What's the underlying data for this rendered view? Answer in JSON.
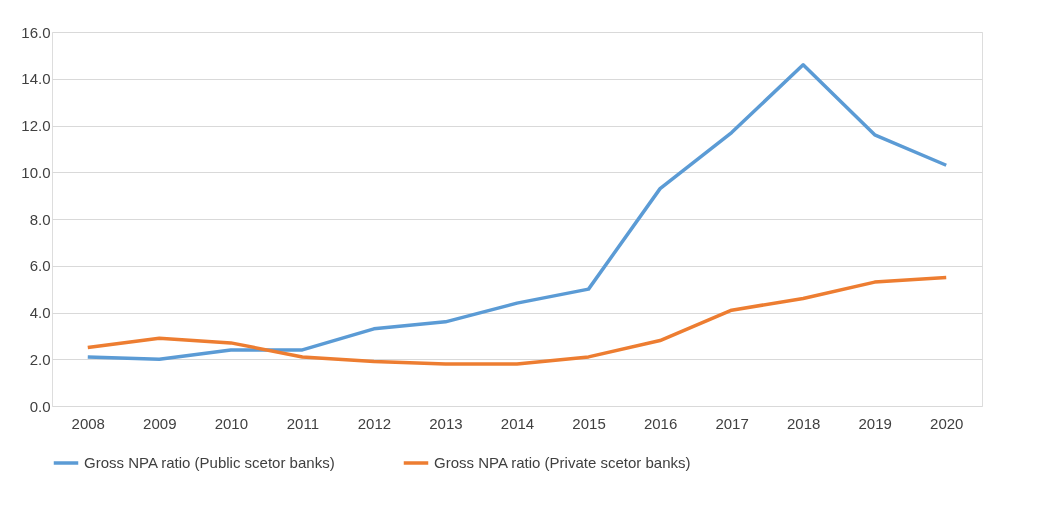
{
  "chart_data": {
    "type": "line",
    "categories": [
      "2008",
      "2009",
      "2010",
      "2011",
      "2012",
      "2013",
      "2014",
      "2015",
      "2016",
      "2017",
      "2018",
      "2019",
      "2020"
    ],
    "series": [
      {
        "name": "Gross NPA ratio (Public scetor banks)",
        "color": "#5b9bd5",
        "values": [
          2.1,
          2.0,
          2.4,
          2.4,
          3.3,
          3.6,
          4.4,
          5.0,
          9.3,
          11.7,
          14.6,
          11.6,
          10.3
        ]
      },
      {
        "name": "Gross NPA ratio (Private scetor banks)",
        "color": "#ed7d31",
        "values": [
          2.5,
          2.9,
          2.7,
          2.1,
          1.9,
          1.8,
          1.8,
          2.1,
          2.8,
          4.1,
          4.6,
          5.3,
          5.5
        ]
      }
    ],
    "ylim": [
      0,
      16
    ],
    "yticks": [
      {
        "value": 0,
        "label": "0.0"
      },
      {
        "value": 2,
        "label": "2.0"
      },
      {
        "value": 4,
        "label": "4.0"
      },
      {
        "value": 6,
        "label": "6.0"
      },
      {
        "value": 8,
        "label": "8.0"
      },
      {
        "value": 10,
        "label": "10.0"
      },
      {
        "value": 12,
        "label": "12.0"
      },
      {
        "value": 14,
        "label": "14.0"
      },
      {
        "value": 16,
        "label": "16.0"
      }
    ],
    "grid": "y",
    "legend": "bottom",
    "marker": "none",
    "line_style": "solid"
  }
}
